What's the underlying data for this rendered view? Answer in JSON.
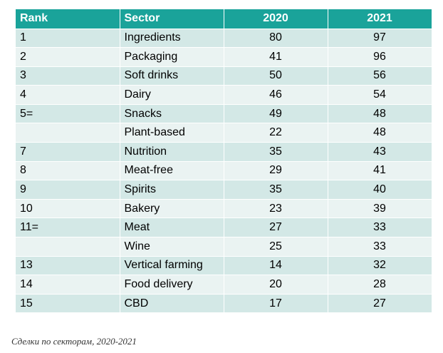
{
  "table": {
    "headers": [
      "Rank",
      "Sector",
      "2020",
      "2021"
    ],
    "rows": [
      {
        "rank": "1",
        "sector": "Ingredients",
        "y2020": "80",
        "y2021": "97"
      },
      {
        "rank": "2",
        "sector": "Packaging",
        "y2020": "41",
        "y2021": "96"
      },
      {
        "rank": "3",
        "sector": "Soft drinks",
        "y2020": "50",
        "y2021": "56"
      },
      {
        "rank": "4",
        "sector": "Dairy",
        "y2020": "46",
        "y2021": "54"
      },
      {
        "rank": "5=",
        "sector": "Snacks",
        "y2020": "49",
        "y2021": "48"
      },
      {
        "rank": "",
        "sector": "Plant-based",
        "y2020": "22",
        "y2021": "48"
      },
      {
        "rank": "7",
        "sector": "Nutrition",
        "y2020": "35",
        "y2021": "43"
      },
      {
        "rank": "8",
        "sector": "Meat-free",
        "y2020": "29",
        "y2021": "41"
      },
      {
        "rank": "9",
        "sector": "Spirits",
        "y2020": "35",
        "y2021": "40"
      },
      {
        "rank": "10",
        "sector": "Bakery",
        "y2020": "23",
        "y2021": "39"
      },
      {
        "rank": "11=",
        "sector": "Meat",
        "y2020": "27",
        "y2021": "33"
      },
      {
        "rank": "",
        "sector": "Wine",
        "y2020": "25",
        "y2021": "33"
      },
      {
        "rank": "13",
        "sector": "Vertical farming",
        "y2020": "14",
        "y2021": "32"
      },
      {
        "rank": "14",
        "sector": "Food delivery",
        "y2020": "20",
        "y2021": "28"
      },
      {
        "rank": "15",
        "sector": "CBD",
        "y2020": "17",
        "y2021": "27"
      }
    ]
  },
  "caption": "Сделки по секторам, 2020-2021",
  "colors": {
    "header": "#1aa39a",
    "row_odd": "#d3e8e6",
    "row_even": "#eaf3f2"
  }
}
